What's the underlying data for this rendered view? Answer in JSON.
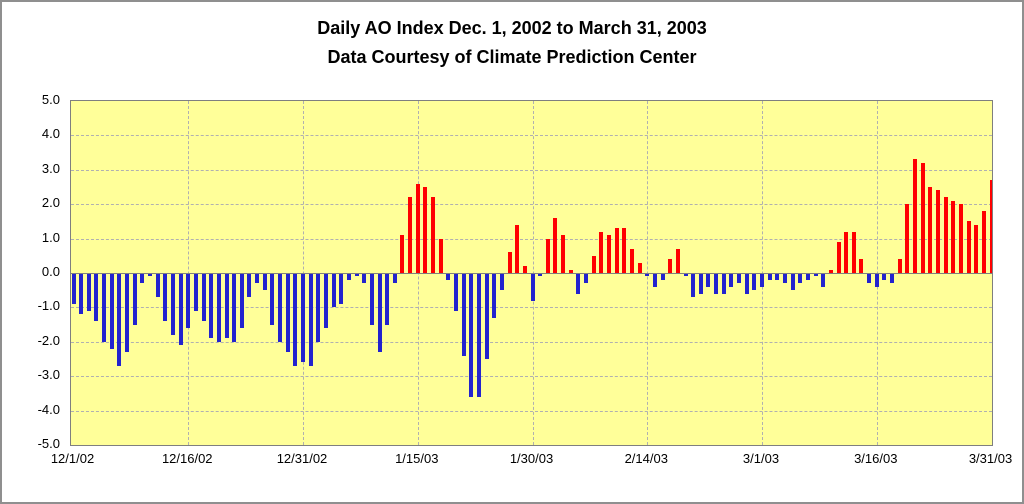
{
  "title": {
    "line1": "Daily AO Index Dec. 1, 2002 to March 31, 2003",
    "line2": "Data Courtesy of Climate Prediction Center"
  },
  "colors": {
    "positive_bar": "#ff0000",
    "negative_bar": "#2323ce",
    "plot_background": "#ffff99",
    "gridline": "#b0b0b0",
    "axis_line": "#7f7f7f"
  },
  "chart_data": {
    "type": "bar",
    "title": "Daily AO Index Dec. 1, 2002 to March 31, 2003",
    "subtitle": "Data Courtesy of Climate Prediction Center",
    "x_start_date": "12/1/02",
    "x_end_date": "3/31/03",
    "x_tick_labels": [
      "12/1/02",
      "12/16/02",
      "12/31/02",
      "1/15/03",
      "1/30/03",
      "2/14/03",
      "3/1/03",
      "3/16/03",
      "3/31/03"
    ],
    "x_tick_day_indices": [
      0,
      15,
      30,
      45,
      60,
      75,
      90,
      105,
      120
    ],
    "y_tick_labels": [
      "5.0",
      "4.0",
      "3.0",
      "2.0",
      "1.0",
      "0.0",
      "-1.0",
      "-2.0",
      "-3.0",
      "-4.0",
      "-5.0"
    ],
    "ylim": [
      -5.0,
      5.0
    ],
    "grid": true,
    "legend": "none",
    "series_name": "Daily AO Index",
    "values": [
      -0.9,
      -1.2,
      -1.1,
      -1.4,
      -2.0,
      -2.2,
      -2.7,
      -2.3,
      -1.5,
      -0.3,
      -0.1,
      -0.7,
      -1.4,
      -1.8,
      -2.1,
      -1.6,
      -1.1,
      -1.4,
      -1.9,
      -2.0,
      -1.9,
      -2.0,
      -1.6,
      -0.7,
      -0.3,
      -0.5,
      -1.5,
      -2.0,
      -2.3,
      -2.7,
      -2.6,
      -2.7,
      -2.0,
      -1.6,
      -1.0,
      -0.9,
      -0.2,
      -0.1,
      -0.3,
      -1.5,
      -2.3,
      -1.5,
      -0.3,
      1.1,
      2.2,
      2.6,
      2.5,
      2.2,
      1.0,
      -0.2,
      -1.1,
      -2.4,
      -3.6,
      -3.6,
      -2.5,
      -1.3,
      -0.5,
      0.6,
      1.4,
      0.2,
      -0.8,
      -0.1,
      1.0,
      1.6,
      1.1,
      0.1,
      -0.6,
      -0.3,
      0.5,
      1.2,
      1.1,
      1.3,
      1.3,
      0.7,
      0.3,
      -0.1,
      -0.4,
      -0.2,
      0.4,
      0.7,
      -0.1,
      -0.7,
      -0.6,
      -0.4,
      -0.6,
      -0.6,
      -0.4,
      -0.3,
      -0.6,
      -0.5,
      -0.4,
      -0.2,
      -0.2,
      -0.3,
      -0.5,
      -0.3,
      -0.2,
      -0.1,
      -0.4,
      0.1,
      0.9,
      1.2,
      1.2,
      0.4,
      -0.3,
      -0.4,
      -0.2,
      -0.3,
      0.4,
      2.0,
      3.3,
      3.2,
      2.5,
      2.4,
      2.2,
      2.1,
      2.0,
      1.5,
      1.4,
      1.8,
      2.7
    ]
  }
}
